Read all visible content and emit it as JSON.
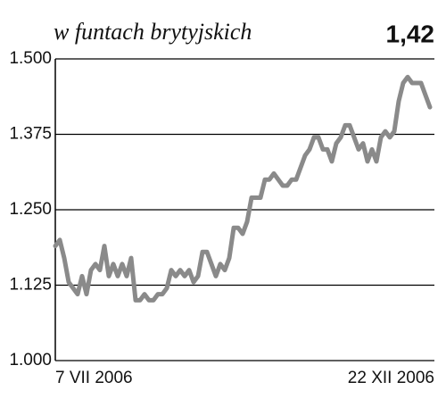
{
  "chart_data": {
    "type": "line",
    "title": "w funtach brytyjskich",
    "annotation": "1,42",
    "categories": [
      "7 VII 2006",
      null,
      null,
      null,
      null,
      null,
      null,
      null,
      null,
      null,
      null,
      null,
      null,
      null,
      null,
      null,
      null,
      null,
      null,
      null,
      null,
      null,
      null,
      null,
      null,
      null,
      null,
      null,
      null,
      null,
      null,
      null,
      null,
      null,
      null,
      null,
      null,
      null,
      null,
      null,
      null,
      null,
      null,
      null,
      null,
      null,
      null,
      null,
      null,
      null,
      null,
      null,
      null,
      null,
      null,
      null,
      null,
      null,
      null,
      null,
      null,
      null,
      null,
      null,
      null,
      null,
      null,
      null,
      null,
      null,
      null,
      null,
      null,
      null,
      null,
      null,
      null,
      null,
      null,
      null,
      null,
      null,
      null,
      null,
      "22 XII 2006"
    ],
    "series": [
      {
        "color": "#8a8a8a",
        "values": [
          1.19,
          1.2,
          1.17,
          1.13,
          1.12,
          1.11,
          1.14,
          1.11,
          1.15,
          1.16,
          1.15,
          1.19,
          1.14,
          1.16,
          1.14,
          1.16,
          1.14,
          1.17,
          1.1,
          1.1,
          1.11,
          1.1,
          1.1,
          1.11,
          1.11,
          1.12,
          1.15,
          1.14,
          1.15,
          1.14,
          1.15,
          1.13,
          1.14,
          1.18,
          1.18,
          1.16,
          1.14,
          1.16,
          1.15,
          1.17,
          1.22,
          1.22,
          1.21,
          1.23,
          1.27,
          1.27,
          1.27,
          1.3,
          1.3,
          1.31,
          1.3,
          1.29,
          1.29,
          1.3,
          1.3,
          1.32,
          1.34,
          1.35,
          1.37,
          1.37,
          1.35,
          1.35,
          1.33,
          1.36,
          1.37,
          1.39,
          1.39,
          1.37,
          1.35,
          1.36,
          1.33,
          1.35,
          1.33,
          1.37,
          1.38,
          1.37,
          1.38,
          1.43,
          1.46,
          1.47,
          1.46,
          1.46,
          1.46,
          1.44,
          1.42
        ]
      }
    ],
    "ylim": [
      1.0,
      1.5
    ],
    "yticks": [
      {
        "value": 1.0,
        "label": "1.000"
      },
      {
        "value": 1.125,
        "label": "1.125"
      },
      {
        "value": 1.25,
        "label": "1.250"
      },
      {
        "value": 1.375,
        "label": "1.375"
      },
      {
        "value": 1.5,
        "label": "1.500"
      }
    ],
    "grid": true
  }
}
